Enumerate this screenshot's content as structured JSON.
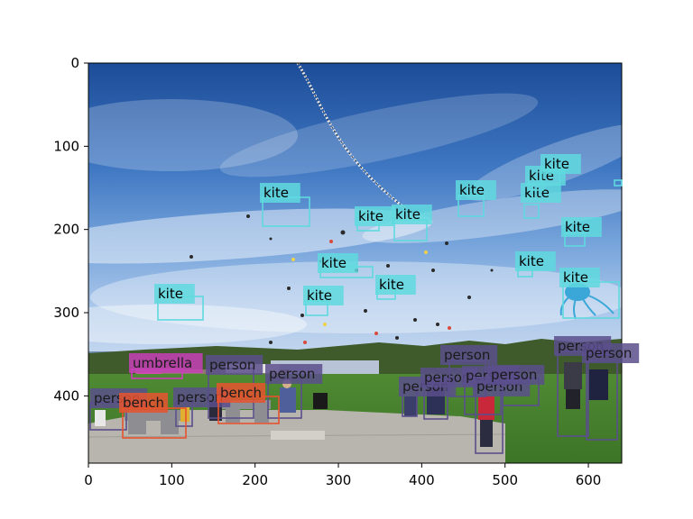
{
  "axes": {
    "x_ticks": [
      "0",
      "100",
      "200",
      "300",
      "400",
      "500",
      "600"
    ],
    "y_ticks": [
      "0",
      "100",
      "200",
      "300",
      "400"
    ]
  },
  "colors": {
    "kite": "#5fd9de",
    "person": "#5a4f8c",
    "bench": "#e8532f",
    "umbrella": "#c840b8"
  },
  "detections": [
    {
      "label": "kite",
      "category": "kite"
    },
    {
      "label": "kite",
      "category": "kite"
    },
    {
      "label": "kite",
      "category": "kite"
    },
    {
      "label": "kite",
      "category": "kite"
    },
    {
      "label": "kite",
      "category": "kite"
    },
    {
      "label": "kite",
      "category": "kite"
    },
    {
      "label": "kite",
      "category": "kite"
    },
    {
      "label": "kite",
      "category": "kite"
    },
    {
      "label": "kite",
      "category": "kite"
    },
    {
      "label": "kite",
      "category": "kite"
    },
    {
      "label": "kite",
      "category": "kite"
    },
    {
      "label": "kite",
      "category": "kite"
    },
    {
      "label": "kite",
      "category": "kite"
    },
    {
      "label": "kite",
      "category": "kite"
    },
    {
      "label": "kite",
      "category": "kite"
    },
    {
      "label": "umbrella",
      "category": "umbrella"
    },
    {
      "label": "person",
      "category": "person"
    },
    {
      "label": "person",
      "category": "person"
    },
    {
      "label": "person",
      "category": "person"
    },
    {
      "label": "person",
      "category": "person"
    },
    {
      "label": "person",
      "category": "person"
    },
    {
      "label": "person",
      "category": "person"
    },
    {
      "label": "person",
      "category": "person"
    },
    {
      "label": "person",
      "category": "person"
    },
    {
      "label": "person",
      "category": "person"
    },
    {
      "label": "person",
      "category": "person"
    },
    {
      "label": "person",
      "category": "person"
    },
    {
      "label": "person",
      "category": "person"
    },
    {
      "label": "bench",
      "category": "bench"
    },
    {
      "label": "bench",
      "category": "bench"
    }
  ]
}
